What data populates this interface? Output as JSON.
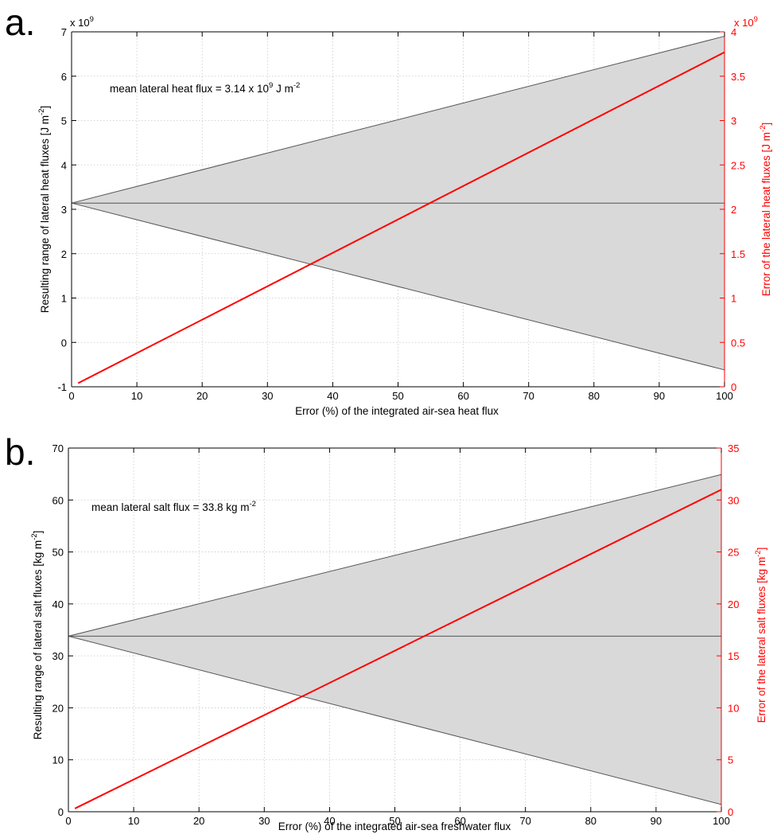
{
  "figure": {
    "panels": [
      {
        "letter": "a.",
        "annotation": {
          "text": "mean lateral heat flux = 3.14 x 10",
          "exp": "9",
          "tail": " J m",
          "tail_exp": "-2"
        },
        "left_multiplier": {
          "text": "x 10",
          "exp": "9"
        },
        "right_multiplier": {
          "text": "x 10",
          "exp": "9"
        },
        "xlabel": "Error (%) of the integrated air-sea heat flux",
        "ylabel_left": {
          "text": "Resulting range of lateral heat fluxes [J m",
          "exp": "-2",
          "tail": "]"
        },
        "ylabel_right": {
          "text": "Error of the lateral heat fluxes [J m",
          "exp": "-2",
          "tail": "]"
        }
      },
      {
        "letter": "b.",
        "annotation": {
          "text": "mean lateral salt flux = 33.8 kg m",
          "exp": "-2",
          "tail": "",
          "tail_exp": ""
        },
        "left_multiplier": null,
        "right_multiplier": null,
        "xlabel": "Error (%) of the integrated air-sea freshwater flux",
        "ylabel_left": {
          "text": "Resulting range of lateral salt fluxes [kg m",
          "exp": "-2",
          "tail": "]"
        },
        "ylabel_right": {
          "text": "Error of the lateral salt fluxes [kg m",
          "exp": "-2",
          "tail": "]"
        }
      }
    ]
  },
  "colors": {
    "fill": "#d9d9d9",
    "envelope": "#555555",
    "red": "#ff0000",
    "grid": "#c8c8c8"
  },
  "chart_data": [
    {
      "type": "area",
      "xlim": [
        0,
        100
      ],
      "ylim_left": [
        -1,
        7
      ],
      "ylim_right": [
        0,
        4
      ],
      "xticks": [
        0,
        10,
        20,
        30,
        40,
        50,
        60,
        70,
        80,
        90,
        100
      ],
      "yticks_left": [
        -1,
        0,
        1,
        2,
        3,
        4,
        5,
        6,
        7
      ],
      "yticks_right": [
        0,
        0.5,
        1,
        1.5,
        2,
        2.5,
        3,
        3.5,
        4
      ],
      "grid": true,
      "mean": 3.14,
      "band": {
        "x": [
          0,
          100
        ],
        "upper": [
          3.14,
          6.9
        ],
        "lower": [
          3.14,
          -0.62
        ]
      },
      "error_line": {
        "x": [
          1,
          100
        ],
        "y": [
          0.04,
          3.77
        ],
        "axis": "right"
      }
    },
    {
      "type": "area",
      "xlim": [
        0,
        100
      ],
      "ylim_left": [
        0,
        70
      ],
      "ylim_right": [
        0,
        35
      ],
      "xticks": [
        0,
        10,
        20,
        30,
        40,
        50,
        60,
        70,
        80,
        90,
        100
      ],
      "yticks_left": [
        0,
        10,
        20,
        30,
        40,
        50,
        60,
        70
      ],
      "yticks_right": [
        0,
        5,
        10,
        15,
        20,
        25,
        30,
        35
      ],
      "grid": true,
      "mean": 33.8,
      "band": {
        "x": [
          0,
          100
        ],
        "upper": [
          33.8,
          64.9
        ],
        "lower": [
          33.8,
          1.4
        ]
      },
      "error_line": {
        "x": [
          1,
          100
        ],
        "y": [
          0.31,
          31.0
        ],
        "axis": "right"
      }
    }
  ]
}
